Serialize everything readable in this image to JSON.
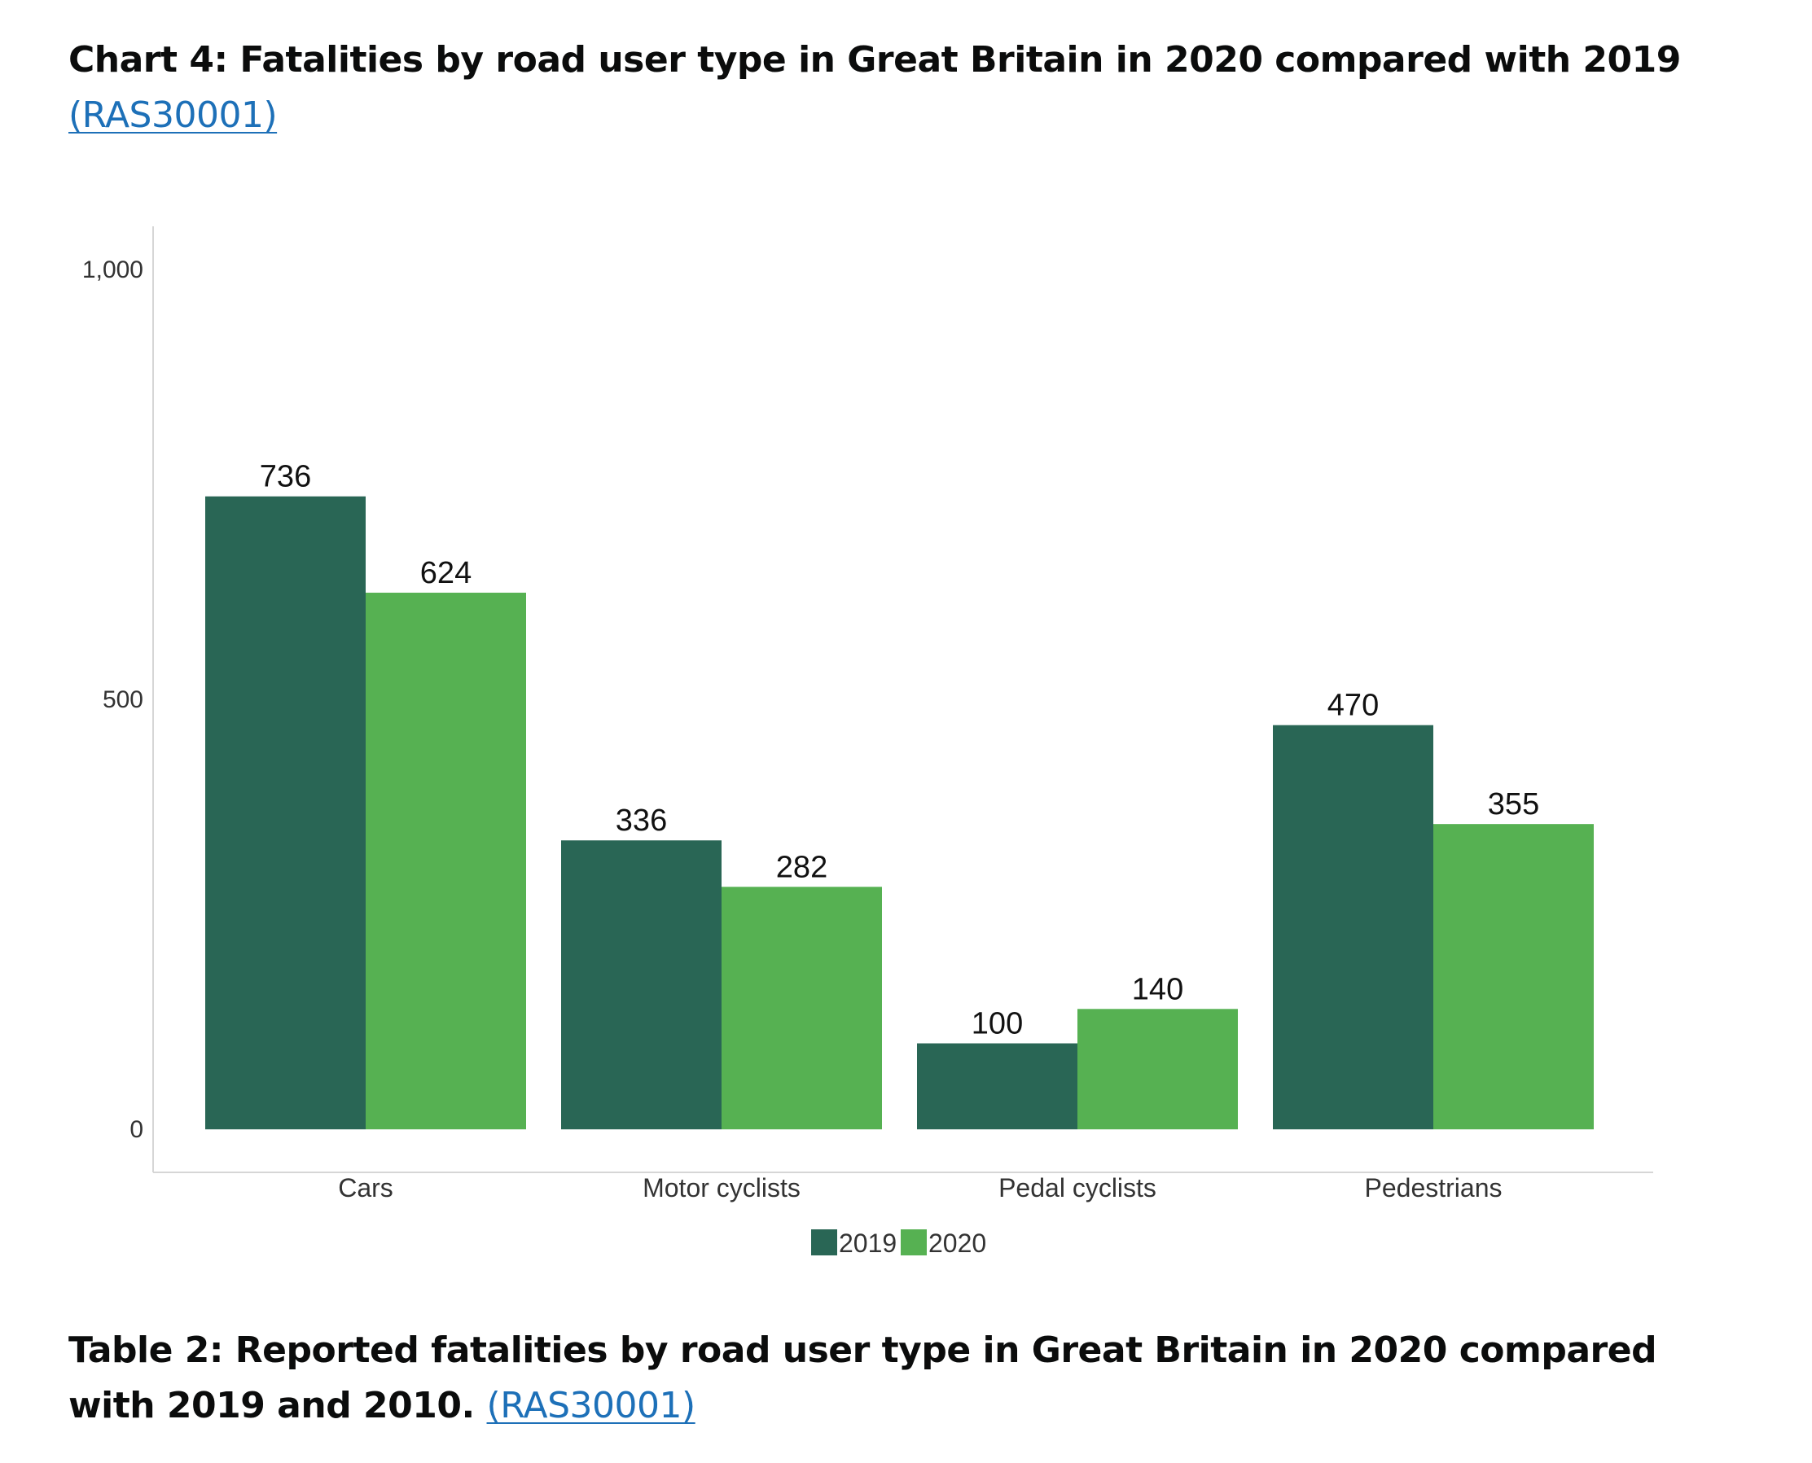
{
  "chart_heading": {
    "text": "Chart 4: Fatalities by road user type in Great Britain in 2020 compared with 2019",
    "link": "(RAS30001)"
  },
  "table_heading": {
    "text": "Table 2: Reported fatalities by road user type in Great Britain in 2020 compared with 2019 and 2010.",
    "link": "(RAS30001)"
  },
  "chart_data": {
    "type": "bar",
    "categories": [
      "Cars",
      "Motor cyclists",
      "Pedal cyclists",
      "Pedestrians"
    ],
    "series": [
      {
        "name": "2019",
        "values": [
          736,
          336,
          100,
          470
        ],
        "color": "#296655"
      },
      {
        "name": "2020",
        "values": [
          624,
          282,
          140,
          355
        ],
        "color": "#56b152"
      }
    ],
    "yticks": [
      0,
      500,
      1000
    ],
    "ytick_labels": [
      "0",
      "500",
      "1,000"
    ],
    "ylim": [
      -50,
      1050
    ],
    "legend_position": "bottom-center",
    "grid": false
  }
}
